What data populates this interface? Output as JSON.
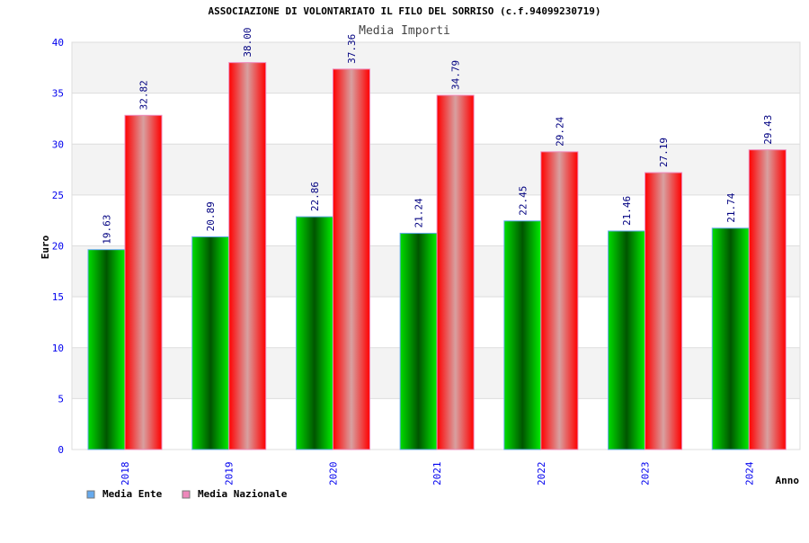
{
  "chart_data": {
    "type": "bar",
    "title": "ASSOCIAZIONE DI VOLONTARIATO IL FILO DEL SORRISO (c.f.94099230719)",
    "subtitle": "Media Importi",
    "xlabel": "Anno",
    "ylabel": "Euro",
    "ylim": [
      0,
      40
    ],
    "yticks": [
      "0",
      "5",
      "10",
      "15",
      "20",
      "25",
      "30",
      "35",
      "40"
    ],
    "categories": [
      "2018",
      "2019",
      "2020",
      "2021",
      "2022",
      "2023",
      "2024"
    ],
    "series": [
      {
        "name": "Media Ente",
        "values": [
          19.63,
          20.89,
          22.86,
          21.24,
          22.45,
          21.46,
          21.74
        ],
        "labels": [
          "19.63",
          "20.89",
          "22.86",
          "21.24",
          "22.45",
          "21.46",
          "21.74"
        ],
        "color": "#00cc00",
        "legend_color": "#66aaee"
      },
      {
        "name": "Media Nazionale",
        "values": [
          32.82,
          38.0,
          37.36,
          34.79,
          29.24,
          27.19,
          29.43
        ],
        "labels": [
          "32.82",
          "38.00",
          "37.36",
          "34.79",
          "29.24",
          "27.19",
          "29.43"
        ],
        "color": "#ff1111",
        "legend_color": "#ee88bb"
      }
    ],
    "grid": true,
    "legend": "bottom-left"
  }
}
